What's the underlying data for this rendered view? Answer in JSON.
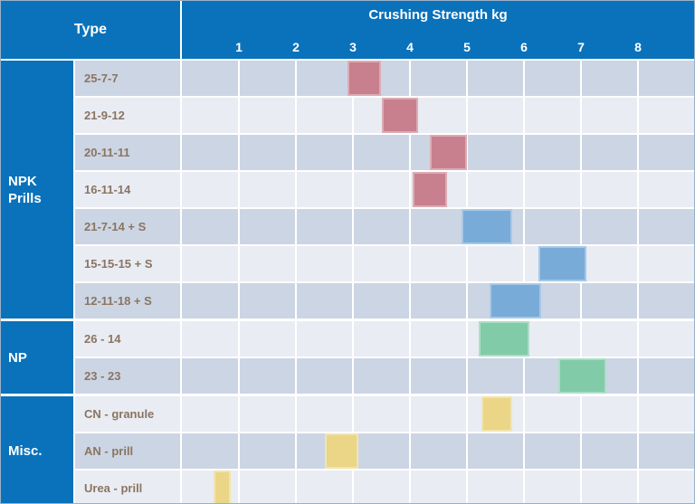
{
  "header": {
    "type_label": "Type",
    "title": "Crushing Strength kg"
  },
  "colors": {
    "header_blue": "#0a72bb",
    "row_dark": "#ccd5e4",
    "row_light": "#e9ecf3",
    "label_brown": "#8a7560",
    "rose": "#c9808e",
    "blue": "#79abd9",
    "green": "#81cba9",
    "yellow": "#ebd687"
  },
  "chart_data": {
    "type": "bar",
    "subtype": "horizontal-range-bars",
    "title": "Crushing Strength kg",
    "xlabel": "Crushing Strength kg",
    "ylabel": "Type",
    "xlim": [
      0,
      8
    ],
    "x_ticks": [
      1,
      2,
      3,
      4,
      5,
      6,
      7,
      8
    ],
    "grid": true,
    "groups": [
      {
        "label": "NPK Prills",
        "rows": [
          {
            "label": "25-7-7",
            "range_kg": [
              2.9,
              3.5
            ],
            "color": "rose"
          },
          {
            "label": "21-9-12",
            "range_kg": [
              3.5,
              4.15
            ],
            "color": "rose"
          },
          {
            "label": "20-11-11",
            "range_kg": [
              4.35,
              5.0
            ],
            "color": "rose"
          },
          {
            "label": "16-11-14",
            "range_kg": [
              4.05,
              4.65
            ],
            "color": "rose"
          },
          {
            "label": "21-7-14 + S",
            "range_kg": [
              4.9,
              5.8
            ],
            "color": "blue"
          },
          {
            "label": "15-15-15 + S",
            "range_kg": [
              6.25,
              7.1
            ],
            "color": "blue"
          },
          {
            "label": "12-11-18 + S",
            "range_kg": [
              5.4,
              6.3
            ],
            "color": "blue"
          }
        ]
      },
      {
        "label": "NP",
        "rows": [
          {
            "label": "26 - 14",
            "range_kg": [
              5.2,
              6.1
            ],
            "color": "green"
          },
          {
            "label": "23 - 23",
            "range_kg": [
              6.6,
              7.45
            ],
            "color": "green"
          }
        ]
      },
      {
        "label": "Misc.",
        "rows": [
          {
            "label": "CN - granule",
            "range_kg": [
              5.25,
              5.8
            ],
            "color": "yellow"
          },
          {
            "label": "AN - prill",
            "range_kg": [
              2.5,
              3.1
            ],
            "color": "yellow"
          },
          {
            "label": "Urea - prill",
            "range_kg": [
              0.55,
              0.85
            ],
            "color": "yellow"
          }
        ]
      }
    ]
  }
}
